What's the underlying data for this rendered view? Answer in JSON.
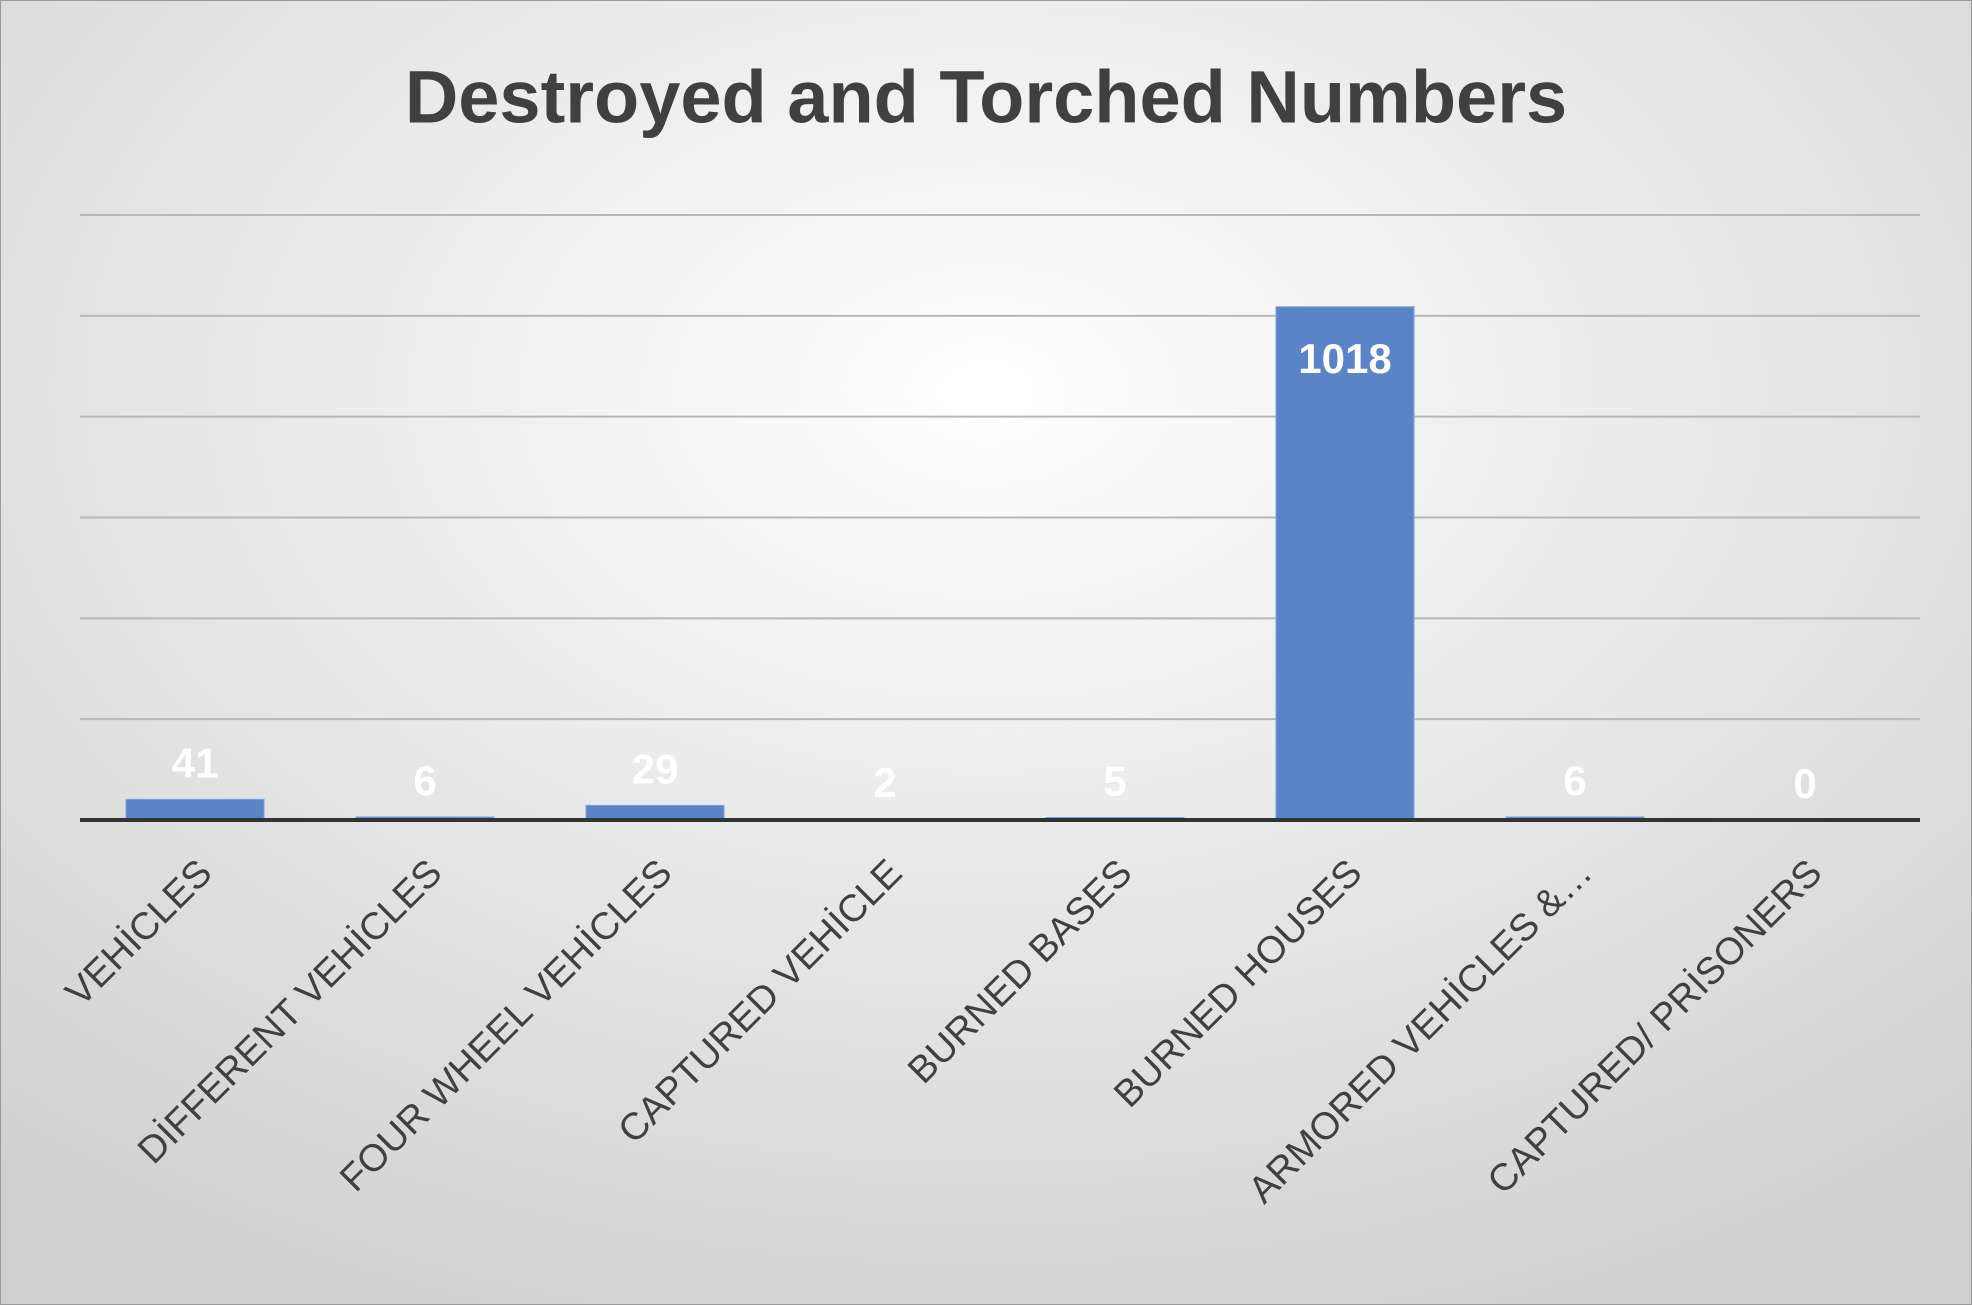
{
  "chart_data": {
    "type": "bar",
    "title": "Destroyed and Torched Numbers",
    "categories": [
      "VEHİCLES",
      "DİFFERENT VEHİCLES",
      "FOUR WHEEL VEHİCLES",
      "CAPTURED VEHİCLE",
      "BURNED BASES",
      "BURNED HOUSES",
      "ARMORED VEHİCLES &…",
      "CAPTURED/ PRİSONERS"
    ],
    "values": [
      41,
      6,
      29,
      2,
      5,
      1018,
      6,
      0
    ],
    "color": "#5b84c8",
    "ylim": [
      0,
      1200
    ],
    "yticks": [
      0,
      200,
      400,
      600,
      800,
      1000,
      1200
    ],
    "grid": true
  }
}
